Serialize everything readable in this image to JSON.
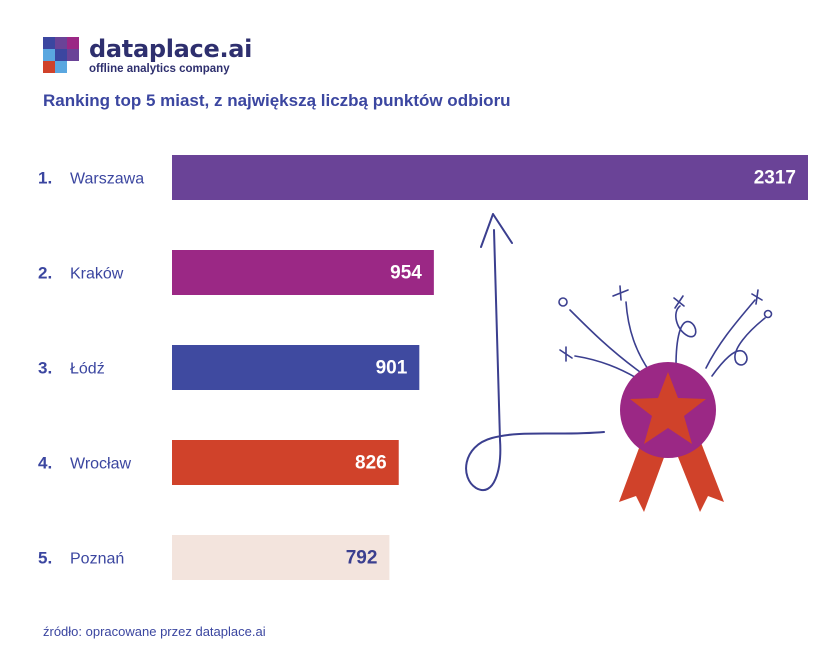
{
  "brand": {
    "name": "dataplace.ai",
    "tagline": "offline analytics company"
  },
  "chart_data": {
    "type": "bar",
    "orientation": "horizontal",
    "title": "Ranking top 5 miast, z największą liczbą punktów odbioru",
    "ranks": [
      "1.",
      "2.",
      "3.",
      "4.",
      "5."
    ],
    "categories": [
      "Warszawa",
      "Kraków",
      "Łódź",
      "Wrocław",
      "Poznań"
    ],
    "values": [
      2317,
      954,
      901,
      826,
      792
    ],
    "value_labels": [
      "2317",
      "954",
      "901",
      "826",
      "792"
    ],
    "colors": [
      "#6a4397",
      "#9b2885",
      "#3f4aa0",
      "#d0422a",
      "#f3e4dd"
    ],
    "label_colors": [
      "#ffffff",
      "#ffffff",
      "#ffffff",
      "#ffffff",
      "#3b3f8f"
    ],
    "xlim": [
      0,
      2317
    ],
    "grid": false,
    "legend": "none"
  },
  "decoration": {
    "badge_color": "#9b2885",
    "star_color": "#d0422a",
    "ribbon_color": "#d0422a",
    "doodle_color": "#3b3f8f"
  },
  "source_text": "źródło: opracowane przez dataplace.ai"
}
